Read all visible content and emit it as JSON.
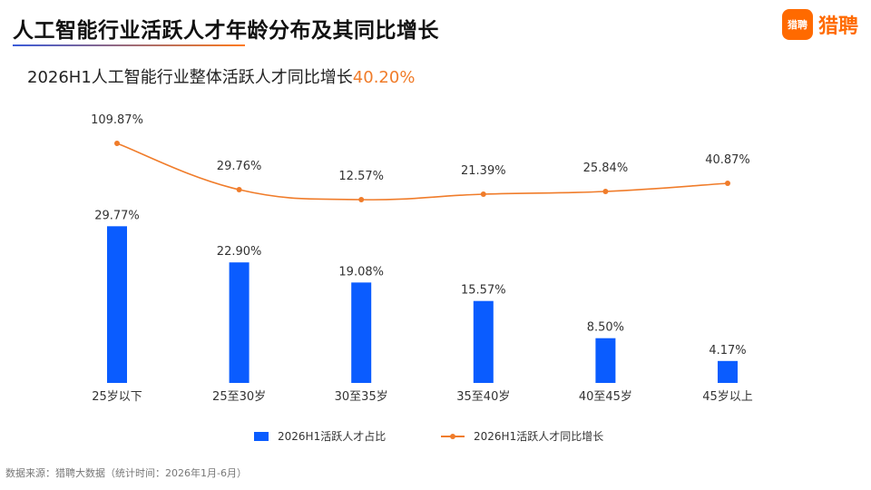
{
  "header": {
    "title": "人工智能行业活跃人才年龄分布及其同比增长",
    "brand_badge": "猎聘",
    "brand_name": "猎聘",
    "subtitle_prefix": "2026H1人工智能行业整体活跃人才同比增长",
    "subtitle_value": "40.20%"
  },
  "footer": {
    "source": "数据来源：猎聘大数据（统计时间：2026年1月-6月）"
  },
  "colors": {
    "bar": "#0a5cff",
    "line": "#f07c2a",
    "accent": "#ff6a00"
  },
  "chart_data": {
    "type": "bar",
    "categories": [
      "25岁以下",
      "25至30岁",
      "30至35岁",
      "35至40岁",
      "40至45岁",
      "45岁以上"
    ],
    "series": [
      {
        "name": "2026H1活跃人才占比",
        "type": "bar",
        "values": [
          29.77,
          22.9,
          19.08,
          15.57,
          8.5,
          4.17
        ],
        "labels": [
          "29.77%",
          "22.90%",
          "19.08%",
          "15.57%",
          "8.50%",
          "4.17%"
        ]
      },
      {
        "name": "2026H1活跃人才同比增长",
        "type": "line",
        "values": [
          109.87,
          29.76,
          12.57,
          21.39,
          25.84,
          40.87
        ],
        "labels": [
          "109.87%",
          "29.76%",
          "12.57%",
          "21.39%",
          "25.84%",
          "40.87%"
        ]
      }
    ],
    "legend_position": "bottom",
    "grid": false
  }
}
